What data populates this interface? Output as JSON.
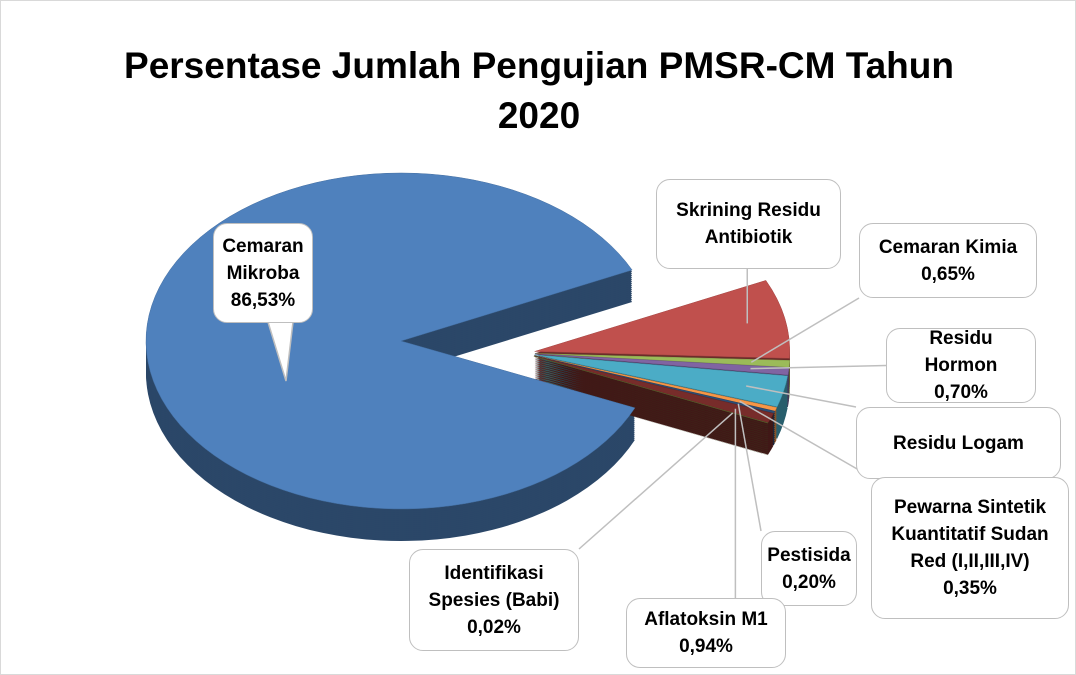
{
  "chart_data": {
    "type": "pie",
    "title": "Persentase Jumlah Pengujian PMSR-CM Tahun 2020",
    "categories": [
      "Skrining Residu Antibiotik",
      "Cemaran Kimia",
      "Residu Hormon",
      "Residu Logam",
      "Pewarna Sintetik Kuantitatif Sudan Red (I,II,III,IV)",
      "Pestisida",
      "Aflatoksin M1",
      "Identifikasi Spesies (Babi)",
      "Cemaran Mikroba"
    ],
    "values": [
      7.6,
      0.65,
      0.7,
      3.0,
      0.35,
      0.2,
      0.94,
      0.02,
      86.53
    ],
    "value_labels": [
      null,
      "0,65%",
      "0,70%",
      null,
      "0,35%",
      "0,20%",
      "0,94%",
      "0,02%",
      "86,53%"
    ],
    "colors": [
      "#c0504d",
      "#9bbb59",
      "#8064a2",
      "#4bacc6",
      "#f79646",
      "#2c4d75",
      "#772c2a",
      "#5f7530",
      "#4f81bd"
    ]
  }
}
